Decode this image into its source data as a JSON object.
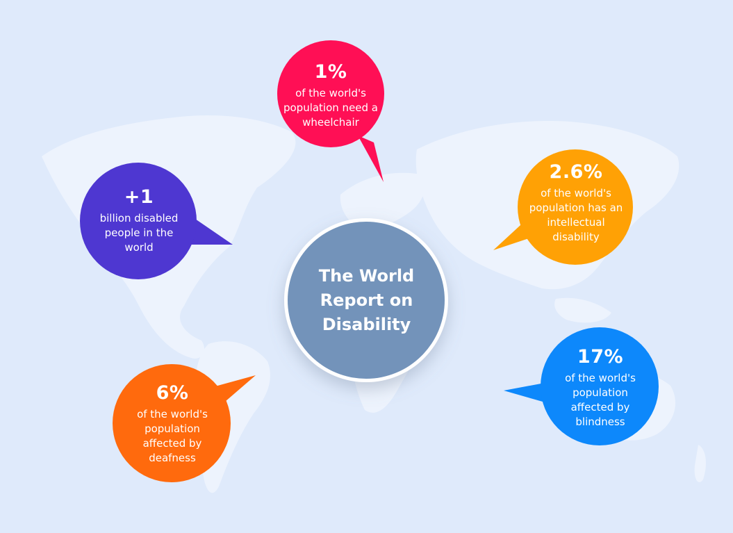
{
  "center": {
    "title": "The World Report on Disability"
  },
  "callouts": [
    {
      "id": "wheelchair",
      "stat": "1%",
      "description": "of the world's population need a wheelchair",
      "color": "#ff0f55"
    },
    {
      "id": "disabled-people",
      "stat": "+1",
      "description": "billion disabled people in the world",
      "color": "#4e37d1"
    },
    {
      "id": "intellectual",
      "stat": "2.6%",
      "description": "of the world's population has an intellectual disability",
      "color": "#ffa105"
    },
    {
      "id": "deafness",
      "stat": "6%",
      "description": "of the world's population affected by deafness",
      "color": "#ff6a0d"
    },
    {
      "id": "blindness",
      "stat": "17%",
      "description": "of the world's population affected by blindness",
      "color": "#0d88fb"
    }
  ],
  "colors": {
    "background": "#dfeafb",
    "map": "#edf3fd",
    "center_circle": "#7393ba",
    "center_ring": "#ffffff"
  }
}
